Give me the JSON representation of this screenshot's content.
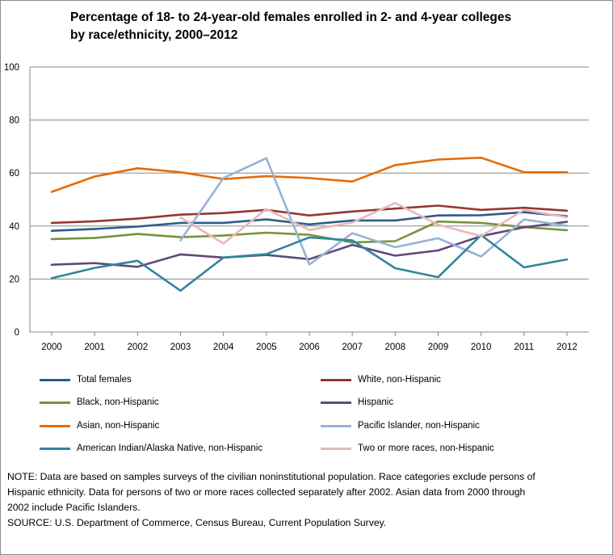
{
  "chart_data": {
    "type": "line",
    "title": [
      "Percentage of 18- to 24-year-old females enrolled in 2- and 4-year colleges",
      "by race/ethnicity, 2000–2012"
    ],
    "xlabel": "",
    "ylabel": "",
    "x": [
      "2000",
      "2001",
      "2002",
      "2003",
      "2004",
      "2005",
      "2006",
      "2007",
      "2008",
      "2009",
      "2010",
      "2011",
      "2012"
    ],
    "ylim": [
      0,
      100
    ],
    "yticks": [
      0,
      20,
      40,
      60,
      80,
      100
    ],
    "grid": "horizontal",
    "legend_position": "bottom",
    "series": [
      {
        "name": "Total females",
        "color": "#2e5c8a",
        "values": [
          38.2,
          38.9,
          39.8,
          41.2,
          41.2,
          42.5,
          40.6,
          42.1,
          42.1,
          44,
          44.1,
          45.2,
          43.7
        ]
      },
      {
        "name": "White, non-Hispanic",
        "color": "#953734",
        "values": [
          41.2,
          41.8,
          42.8,
          44.3,
          44.9,
          46.1,
          44,
          45.5,
          46.6,
          47.7,
          46.1,
          46.9,
          45.8
        ]
      },
      {
        "name": "Black, non-Hispanic",
        "color": "#77933c",
        "values": [
          35.1,
          35.5,
          37,
          35.8,
          36.4,
          37.5,
          36.7,
          33.8,
          34.3,
          41.7,
          41.2,
          39.6,
          38.4
        ]
      },
      {
        "name": "Hispanic",
        "color": "#60497a",
        "values": [
          25.4,
          26,
          24.6,
          29.3,
          28.1,
          29.1,
          27.5,
          32.9,
          28.8,
          30.8,
          36.2,
          39.5,
          41.6
        ]
      },
      {
        "name": "Asian, non-Hispanic",
        "color": "#e46c0a",
        "values": [
          52.9,
          58.7,
          61.8,
          60.3,
          57.7,
          58.8,
          58.1,
          56.8,
          63,
          65.1,
          65.8,
          60.3,
          60.3
        ]
      },
      {
        "name": "Pacific Islander, non-Hispanic",
        "color": "#95b3d7",
        "values": [
          null,
          null,
          null,
          34.6,
          58.1,
          65.6,
          25.5,
          37.3,
          32,
          35.4,
          28.5,
          42.5,
          40.1
        ]
      },
      {
        "name": "American Indian/Alaska Native, non-Hispanic",
        "color": "#31859c",
        "values": [
          20.3,
          24.2,
          26.9,
          15.6,
          28.1,
          29.4,
          35.7,
          34.6,
          24.1,
          20.7,
          36.6,
          24.4,
          27.4
        ]
      },
      {
        "name": "Two or more races, non-Hispanic",
        "color": "#e6b9b8",
        "values": [
          null,
          null,
          null,
          43.2,
          33.4,
          46.4,
          38.5,
          41.3,
          48.7,
          40.5,
          36.2,
          46.1,
          43.3
        ]
      }
    ]
  },
  "notes": [
    "NOTE: Data are based on samples surveys of the civilian noninstitutional population. Race categories exclude persons of",
    "Hispanic ethnicity. Data for persons of two or more races collected separately after 2002. Asian data from 2000 through",
    "2002  include Pacific Islanders.",
    "SOURCE: U.S. Department of Commerce, Census Bureau, Current Population Survey."
  ]
}
